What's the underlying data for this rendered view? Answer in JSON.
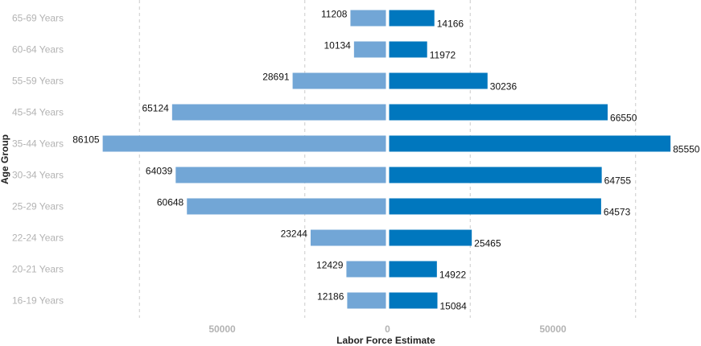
{
  "chart_data": {
    "type": "bar",
    "orientation": "horizontal-diverging",
    "xlabel": "Labor Force Estimate",
    "ylabel": "Age Group",
    "categories": [
      "16-19 Years",
      "20-21 Years",
      "22-24 Years",
      "25-29 Years",
      "30-34 Years",
      "35-44 Years",
      "45-54 Years",
      "55-59 Years",
      "60-64 Years",
      "65-69 Years"
    ],
    "series": [
      {
        "side": "left",
        "color": "#72a6d6",
        "values": [
          12186,
          12429,
          23244,
          60648,
          64039,
          86105,
          65124,
          28691,
          10134,
          11208
        ]
      },
      {
        "side": "right",
        "color": "#0077be",
        "values": [
          15084,
          14922,
          25465,
          64573,
          64755,
          85550,
          66550,
          30236,
          11972,
          14166
        ]
      }
    ],
    "xlim": [
      -95000,
      95000
    ],
    "x_ticks": [
      -50000,
      0,
      50000
    ],
    "x_tick_labels": [
      "50000",
      "0",
      "50000"
    ],
    "grid": {
      "vertical": true,
      "style": "dashed",
      "positions": [
        -75000,
        -25000,
        25000,
        75000
      ]
    }
  }
}
